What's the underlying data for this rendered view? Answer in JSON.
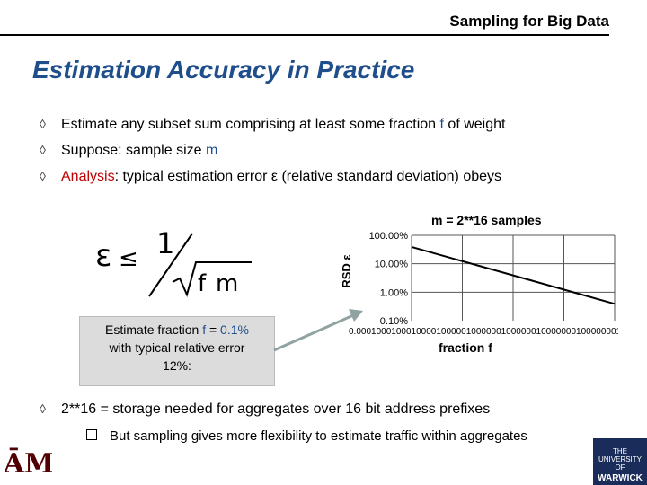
{
  "header": {
    "text": "Sampling for Big Data"
  },
  "title": "Estimation Accuracy in Practice",
  "bullets": [
    {
      "pre": "Estimate any subset sum comprising at least some fraction ",
      "hl": "f",
      "post": " of weight"
    },
    {
      "pre": "Suppose: sample size ",
      "hl": "m",
      "post": ""
    },
    {
      "hl_red": "Analysis",
      "post": ": typical estimation error ε (relative standard deviation) obeys"
    }
  ],
  "formula": {
    "epsilon": "ε",
    "le": "≤",
    "numerator": "1",
    "f": "f",
    "m": "m"
  },
  "callout": {
    "line1_pre": "Estimate fraction ",
    "line1_hl": "f",
    "line1_mid": " = ",
    "line1_val": "0.1%",
    "line2": "with typical relative error",
    "line3": "12%:"
  },
  "chart_data": {
    "type": "line",
    "title": "m = 2**16 samples",
    "xlabel": "fraction f",
    "ylabel": "RSD ε",
    "y_ticks": [
      "100.00%",
      "10.00%",
      "1.00%",
      "0.10%"
    ],
    "x_ticks_overlapping": "0.0001000100010000100000100000010000001000000010000000100000001",
    "x": [
      0.0001,
      1
    ],
    "y": [
      0.39,
      0.0039
    ],
    "log_scale": true,
    "grid": true
  },
  "bottom": {
    "bullet": "2**16 = storage needed for aggregates over 16 bit address prefixes",
    "sub": "But sampling gives more flexibility to estimate traffic within aggregates"
  },
  "logos": {
    "left": "ATM",
    "right": "WARWICK",
    "right_small": "THE UNIVERSITY OF"
  },
  "colors": {
    "title": "#1f4e8c",
    "highlight": "#1f4e8c",
    "analysis": "#c00000",
    "arrow": "#8fa3a3"
  }
}
